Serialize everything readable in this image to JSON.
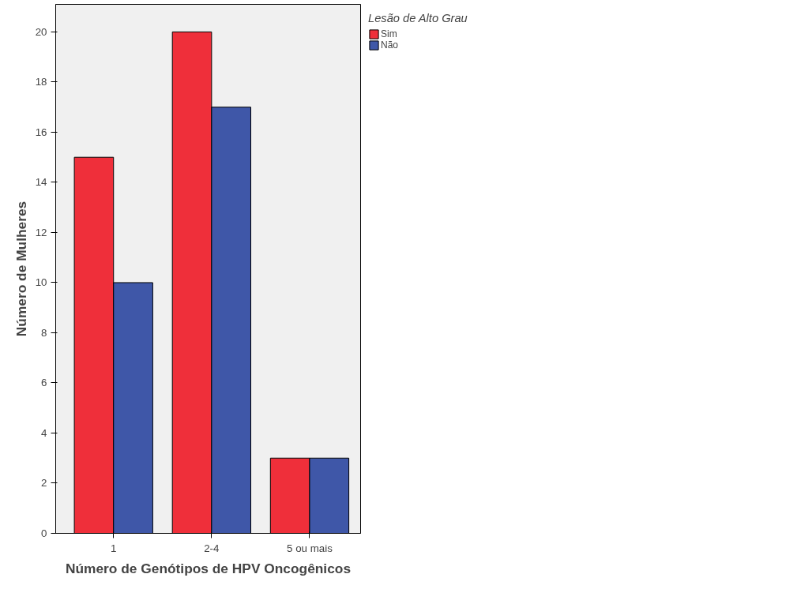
{
  "chart_data": {
    "type": "bar",
    "xlabel": "Número de Genótipos de HPV Oncogênicos",
    "ylabel": "Número de Mulheres",
    "legend_title": "Lesão de Alto Grau",
    "categories": [
      "1",
      "2-4",
      "5 ou mais"
    ],
    "series": [
      {
        "name": "Sim",
        "color": "#ef2f3a",
        "values": [
          15,
          20,
          3
        ]
      },
      {
        "name": "Não",
        "color": "#3f57a8",
        "values": [
          10,
          17,
          3
        ]
      }
    ],
    "ylim": [
      0,
      21.1
    ],
    "yticks": [
      0,
      2,
      4,
      6,
      8,
      10,
      12,
      14,
      16,
      18,
      20
    ],
    "grid": false,
    "legend": "top right"
  }
}
